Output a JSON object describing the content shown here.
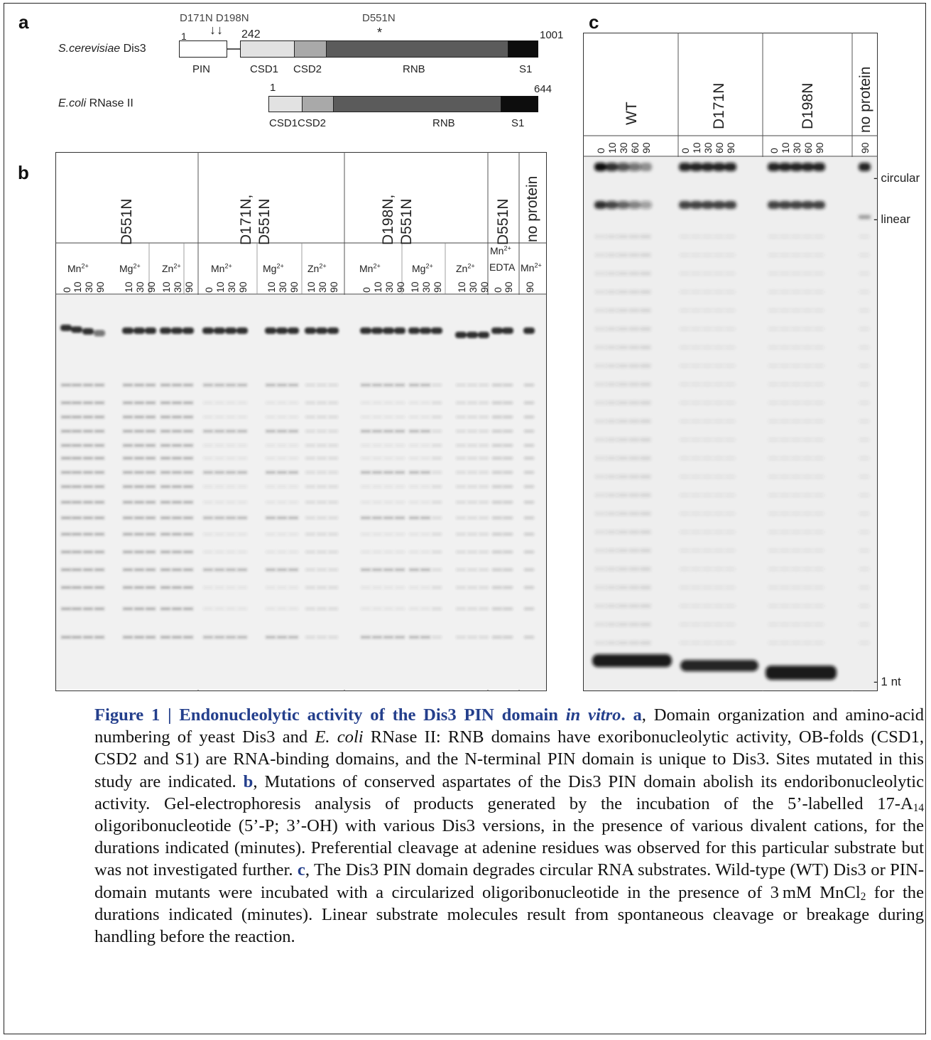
{
  "panels": {
    "a": "a",
    "b": "b",
    "c": "c"
  },
  "panel_a": {
    "dis3": {
      "name_italic": "S.cerevisiae",
      "name_plain": " Dis3",
      "mutations": [
        "D171N D198N",
        "D551N"
      ],
      "arrows": "↓↓",
      "star": "*",
      "numbers": [
        "1",
        "242",
        "1001"
      ],
      "domains": [
        "PIN",
        "CSD1",
        "CSD2",
        "RNB",
        "S1"
      ]
    },
    "rnase2": {
      "name_italic": "E.coli",
      "name_plain": " RNase II",
      "numbers": [
        "1",
        "644"
      ],
      "domains": [
        "CSD1CSD2",
        "RNB",
        "S1"
      ]
    },
    "colors": {
      "pin": "#ffffff",
      "csd1": "#e2e2e2",
      "csd2": "#a9a9a9",
      "rnb": "#5b5b5b",
      "s1": "#0d0d0d"
    }
  },
  "panel_b": {
    "groups": [
      "D551N",
      "D171N,",
      "D551N",
      "D198N,",
      "D551N",
      "D551N",
      "no protein"
    ],
    "ions": [
      "Mn2+",
      "Mg2+",
      "Zn2+",
      "Mn2+",
      "Mg2+",
      "Zn2+",
      "Mn2+",
      "Mg2+",
      "Zn2+",
      "Mn2+",
      "EDTA",
      "Mn2+"
    ],
    "lanes": [
      "0",
      "10",
      "30",
      "90",
      "10",
      "30",
      "90",
      "10",
      "30",
      "90",
      "0",
      "10",
      "30",
      "90",
      "10",
      "30",
      "90",
      "10",
      "30",
      "90",
      "0",
      "10",
      "30",
      "90",
      "10",
      "30",
      "90",
      "10",
      "30",
      "90",
      "0",
      "90",
      "90"
    ]
  },
  "panel_c": {
    "groups": [
      "WT",
      "D171N",
      "D198N",
      "no protein"
    ],
    "lanes": [
      "0",
      "10",
      "30",
      "60",
      "90",
      "0",
      "10",
      "30",
      "60",
      "90",
      "0",
      "10",
      "30",
      "60",
      "90",
      "90"
    ],
    "bands": [
      "circular",
      "linear",
      "1 nt"
    ]
  },
  "caption": {
    "title_a": "Figure 1 | Endonucleolytic activity of the Dis3 PIN domain ",
    "title_b": "in vitro",
    "title_c": ".",
    "lab_a": "a",
    "s1": ", Domain organization and amino-acid numbering of yeast Dis3 and ",
    "s1_it": "E. coli",
    "s1b": " RNase II: RNB domains have exoribonucleolytic activity, OB-folds (CSD1, CSD2 and S1) are RNA-binding domains, and the N-terminal PIN domain is unique to Dis3. Sites mutated in this study are indicated. ",
    "lab_b": "b",
    "s2": ", Mutations of conserved aspartates of the Dis3 PIN domain abolish its endoribonucleolytic activity. Gel-electrophoresis analysis of products generated by the incubation of the 5’-labelled 17-A",
    "s2_sub": "14",
    "s2b": " oligoribonucleotide (5’-P; 3’-OH) with various Dis3 versions, in the presence of various divalent cations, for the durations indicated (minutes). Preferential cleavage at adenine residues was observed for this particular substrate but was not investigated further. ",
    "lab_c": "c",
    "s3": ", The Dis3 PIN domain degrades circular RNA substrates. Wild-type (WT) Dis3 or PIN-domain mutants were incubated with a circularized oligoribonucleotide in the presence of 3 mM MnCl",
    "s3_sub": "2",
    "s3b": " for the durations indicated (minutes). Linear substrate molecules result from spontaneous cleavage or breakage during handling before the reaction."
  }
}
